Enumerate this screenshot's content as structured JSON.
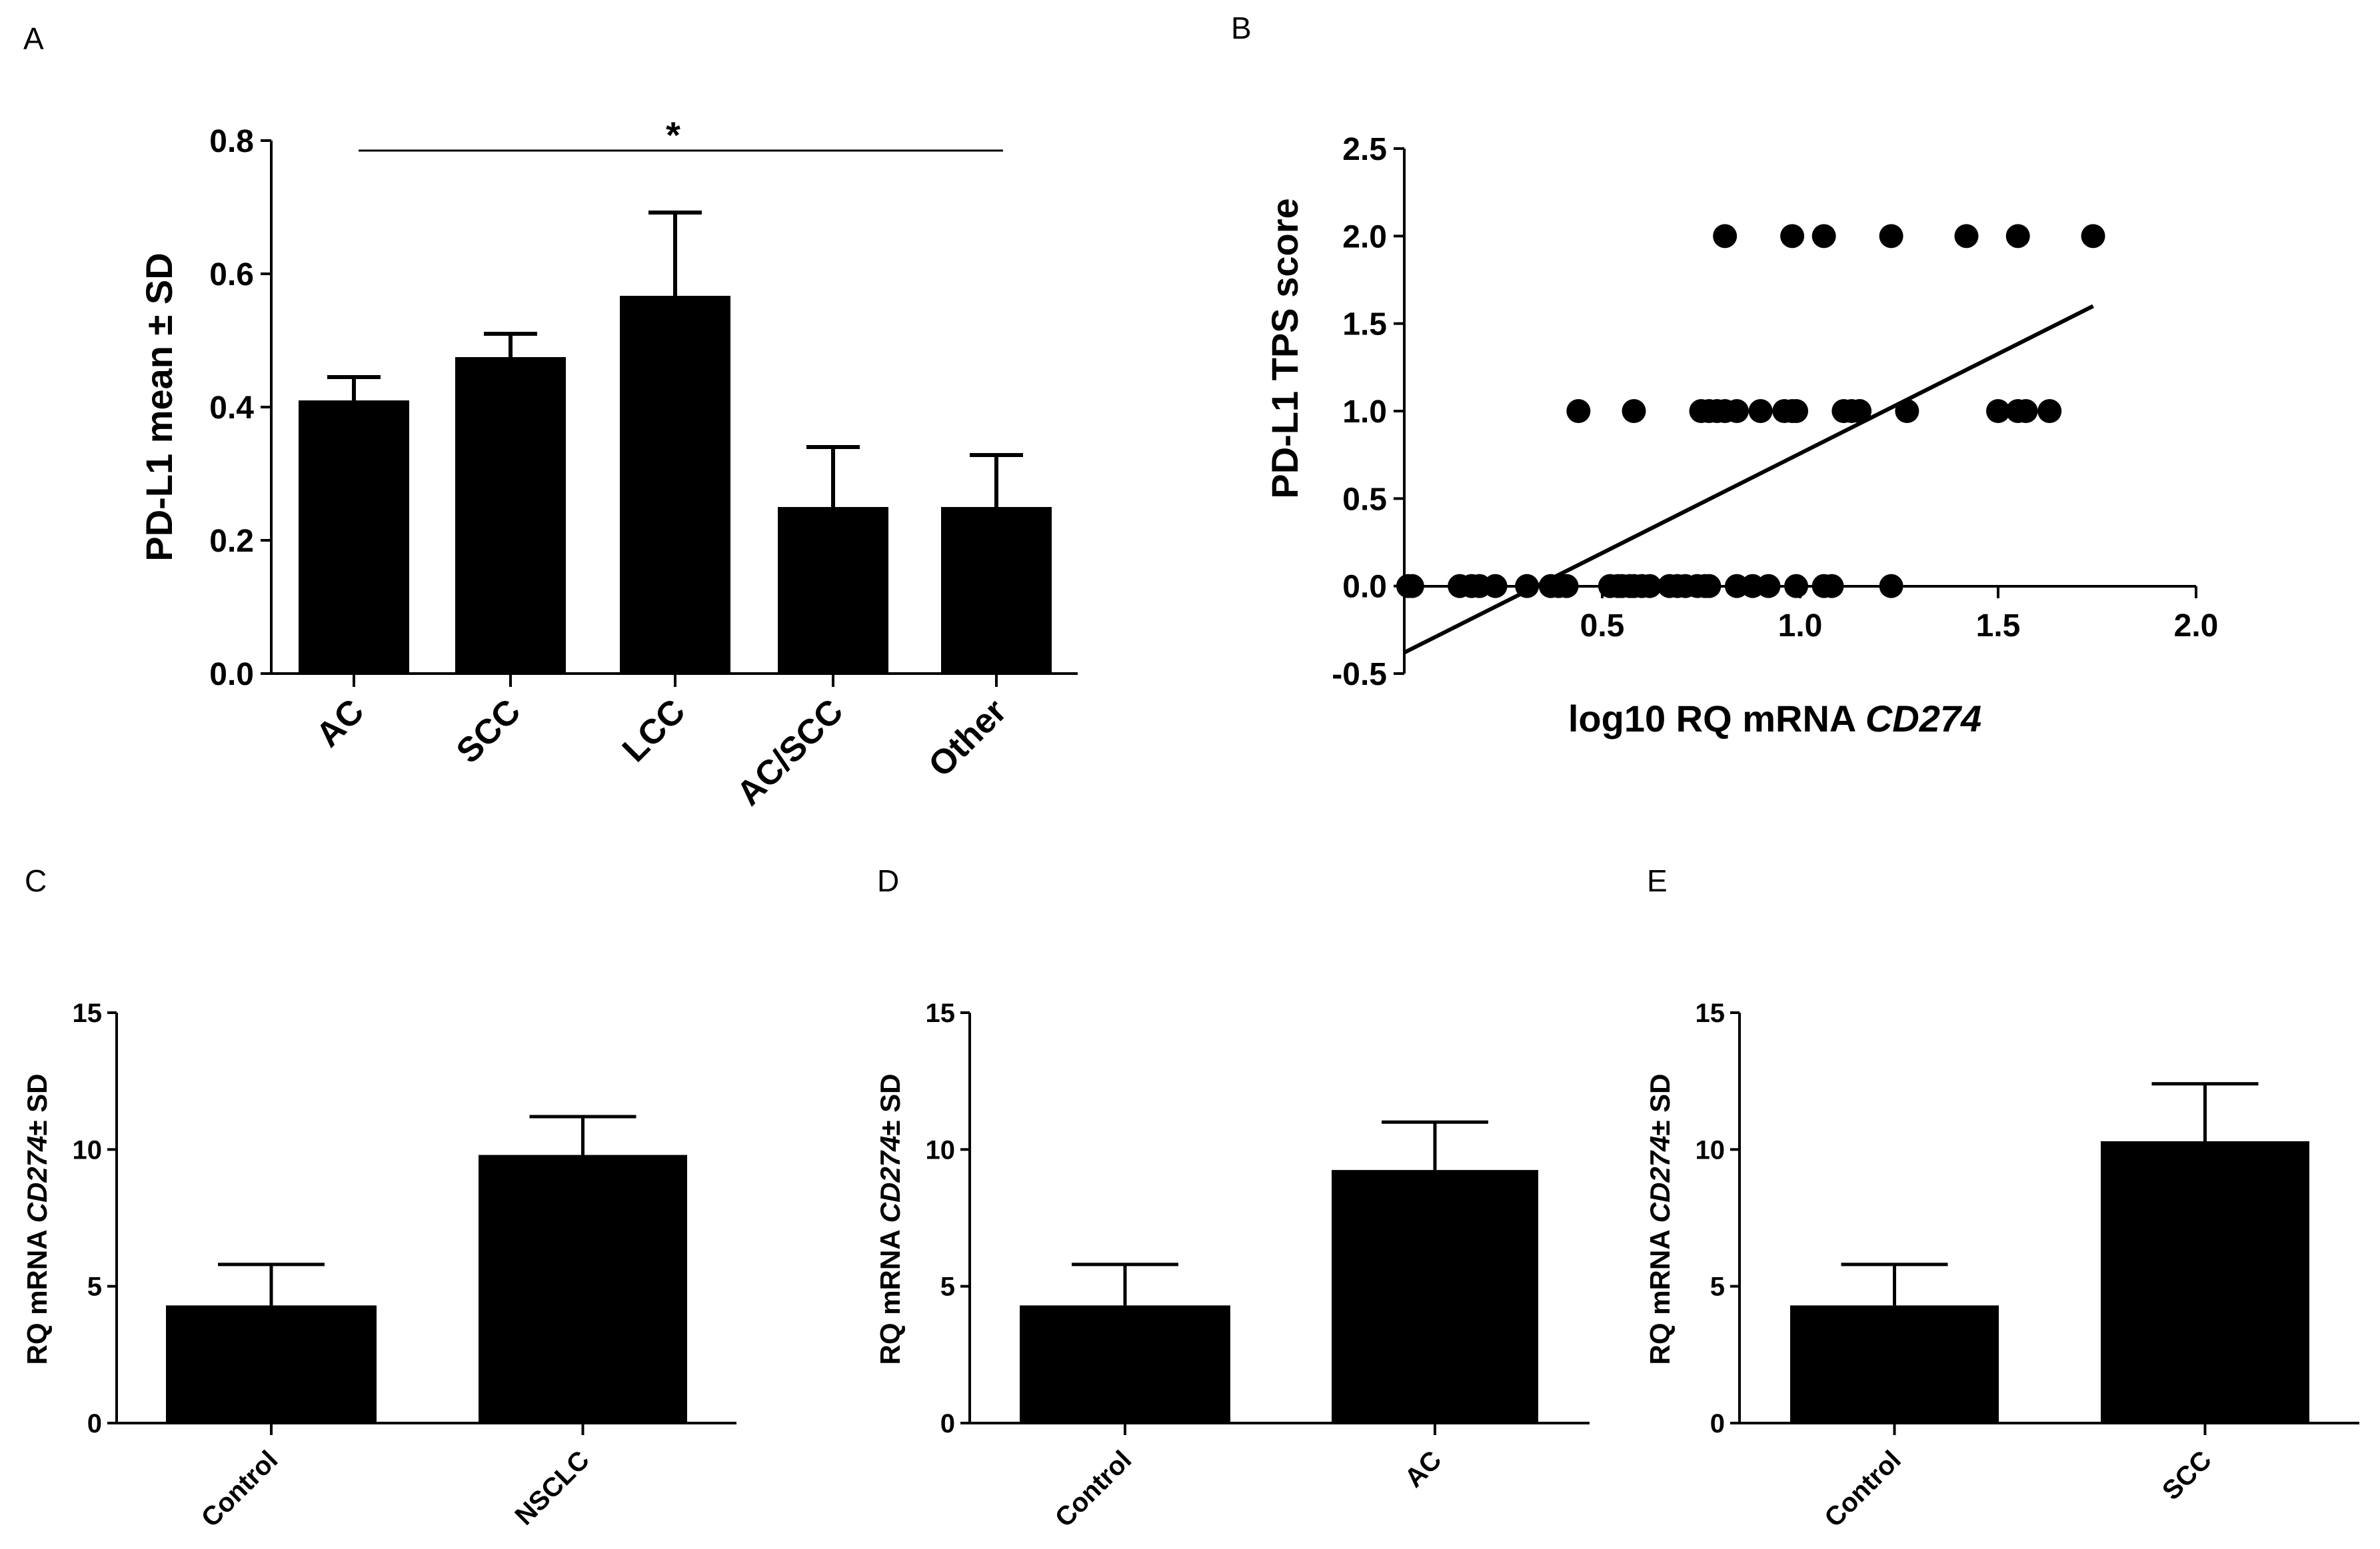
{
  "chart_data": [
    {
      "panel": "A",
      "type": "bar",
      "categories": [
        "AC",
        "SCC",
        "LCC",
        "AC/SCC",
        "Other"
      ],
      "values": [
        0.41,
        0.475,
        0.567,
        0.25,
        0.25
      ],
      "errors": [
        0.035,
        0.035,
        0.125,
        0.09,
        0.078
      ],
      "ylabel": "PD-L1 mean ± SD",
      "ylim": [
        0,
        0.8
      ],
      "yticks": [
        "0.0",
        "0.2",
        "0.4",
        "0.6",
        "0.8"
      ],
      "significance": "*"
    },
    {
      "panel": "B",
      "type": "scatter",
      "xlabel_prefix": "log10 RQ mRNA ",
      "xlabel_gene": "CD274",
      "ylabel": "PD-L1 TPS score",
      "xlim": [
        0,
        2.0
      ],
      "ylim": [
        -0.5,
        2.5
      ],
      "xticks": [
        "0.5",
        "1.0",
        "1.5",
        "2.0"
      ],
      "yticks": [
        "-0.5",
        "0.0",
        "0.5",
        "1.0",
        "1.5",
        "2.0",
        "2.5"
      ],
      "points": [
        [
          0.01,
          0
        ],
        [
          0.02,
          0
        ],
        [
          0.14,
          0
        ],
        [
          0.17,
          0
        ],
        [
          0.19,
          0
        ],
        [
          0.23,
          0
        ],
        [
          0.31,
          0
        ],
        [
          0.37,
          0
        ],
        [
          0.39,
          0
        ],
        [
          0.41,
          0
        ],
        [
          0.52,
          0
        ],
        [
          0.54,
          0
        ],
        [
          0.55,
          0
        ],
        [
          0.57,
          0
        ],
        [
          0.58,
          0
        ],
        [
          0.6,
          0
        ],
        [
          0.62,
          0
        ],
        [
          0.67,
          0
        ],
        [
          0.69,
          0
        ],
        [
          0.71,
          0
        ],
        [
          0.74,
          0
        ],
        [
          0.76,
          0
        ],
        [
          0.77,
          0
        ],
        [
          0.84,
          0
        ],
        [
          0.88,
          0
        ],
        [
          0.92,
          0
        ],
        [
          0.99,
          0
        ],
        [
          1.06,
          0
        ],
        [
          1.08,
          0
        ],
        [
          1.23,
          0
        ],
        [
          0.44,
          1
        ],
        [
          0.58,
          1
        ],
        [
          0.75,
          1
        ],
        [
          0.77,
          1
        ],
        [
          0.79,
          1
        ],
        [
          0.81,
          1
        ],
        [
          0.84,
          1
        ],
        [
          0.9,
          1
        ],
        [
          0.96,
          1
        ],
        [
          0.98,
          1
        ],
        [
          0.99,
          1
        ],
        [
          1.11,
          1
        ],
        [
          1.13,
          1
        ],
        [
          1.15,
          1
        ],
        [
          1.27,
          1
        ],
        [
          1.5,
          1
        ],
        [
          1.55,
          1
        ],
        [
          1.57,
          1
        ],
        [
          1.63,
          1
        ],
        [
          0.81,
          2
        ],
        [
          0.98,
          2
        ],
        [
          1.06,
          2
        ],
        [
          1.23,
          2
        ],
        [
          1.42,
          2
        ],
        [
          1.55,
          2
        ],
        [
          1.74,
          2
        ]
      ],
      "fit_line": [
        [
          0,
          -0.38
        ],
        [
          1.74,
          1.6
        ]
      ]
    },
    {
      "panel": "C",
      "type": "bar",
      "categories": [
        "Control",
        "NSCLC"
      ],
      "values": [
        4.3,
        9.8
      ],
      "errors": [
        1.5,
        1.4
      ],
      "ylabel_prefix": "RQ mRNA ",
      "ylabel_gene": "CD274",
      "ylabel_suffix": "± SD",
      "ylim": [
        0,
        15
      ],
      "yticks": [
        "0",
        "5",
        "10",
        "15"
      ]
    },
    {
      "panel": "D",
      "type": "bar",
      "categories": [
        "Control",
        "AC"
      ],
      "values": [
        4.3,
        9.25
      ],
      "errors": [
        1.5,
        1.75
      ],
      "ylabel_prefix": "RQ mRNA ",
      "ylabel_gene": "CD274",
      "ylabel_suffix": "± SD",
      "ylim": [
        0,
        15
      ],
      "yticks": [
        "0",
        "5",
        "10",
        "15"
      ]
    },
    {
      "panel": "E",
      "type": "bar",
      "categories": [
        "Control",
        "SCC"
      ],
      "values": [
        4.3,
        10.3
      ],
      "errors": [
        1.5,
        2.1
      ],
      "ylabel_prefix": "RQ mRNA ",
      "ylabel_gene": "CD274",
      "ylabel_suffix": "± SD",
      "ylim": [
        0,
        15
      ],
      "yticks": [
        "0",
        "5",
        "10",
        "15"
      ]
    }
  ]
}
